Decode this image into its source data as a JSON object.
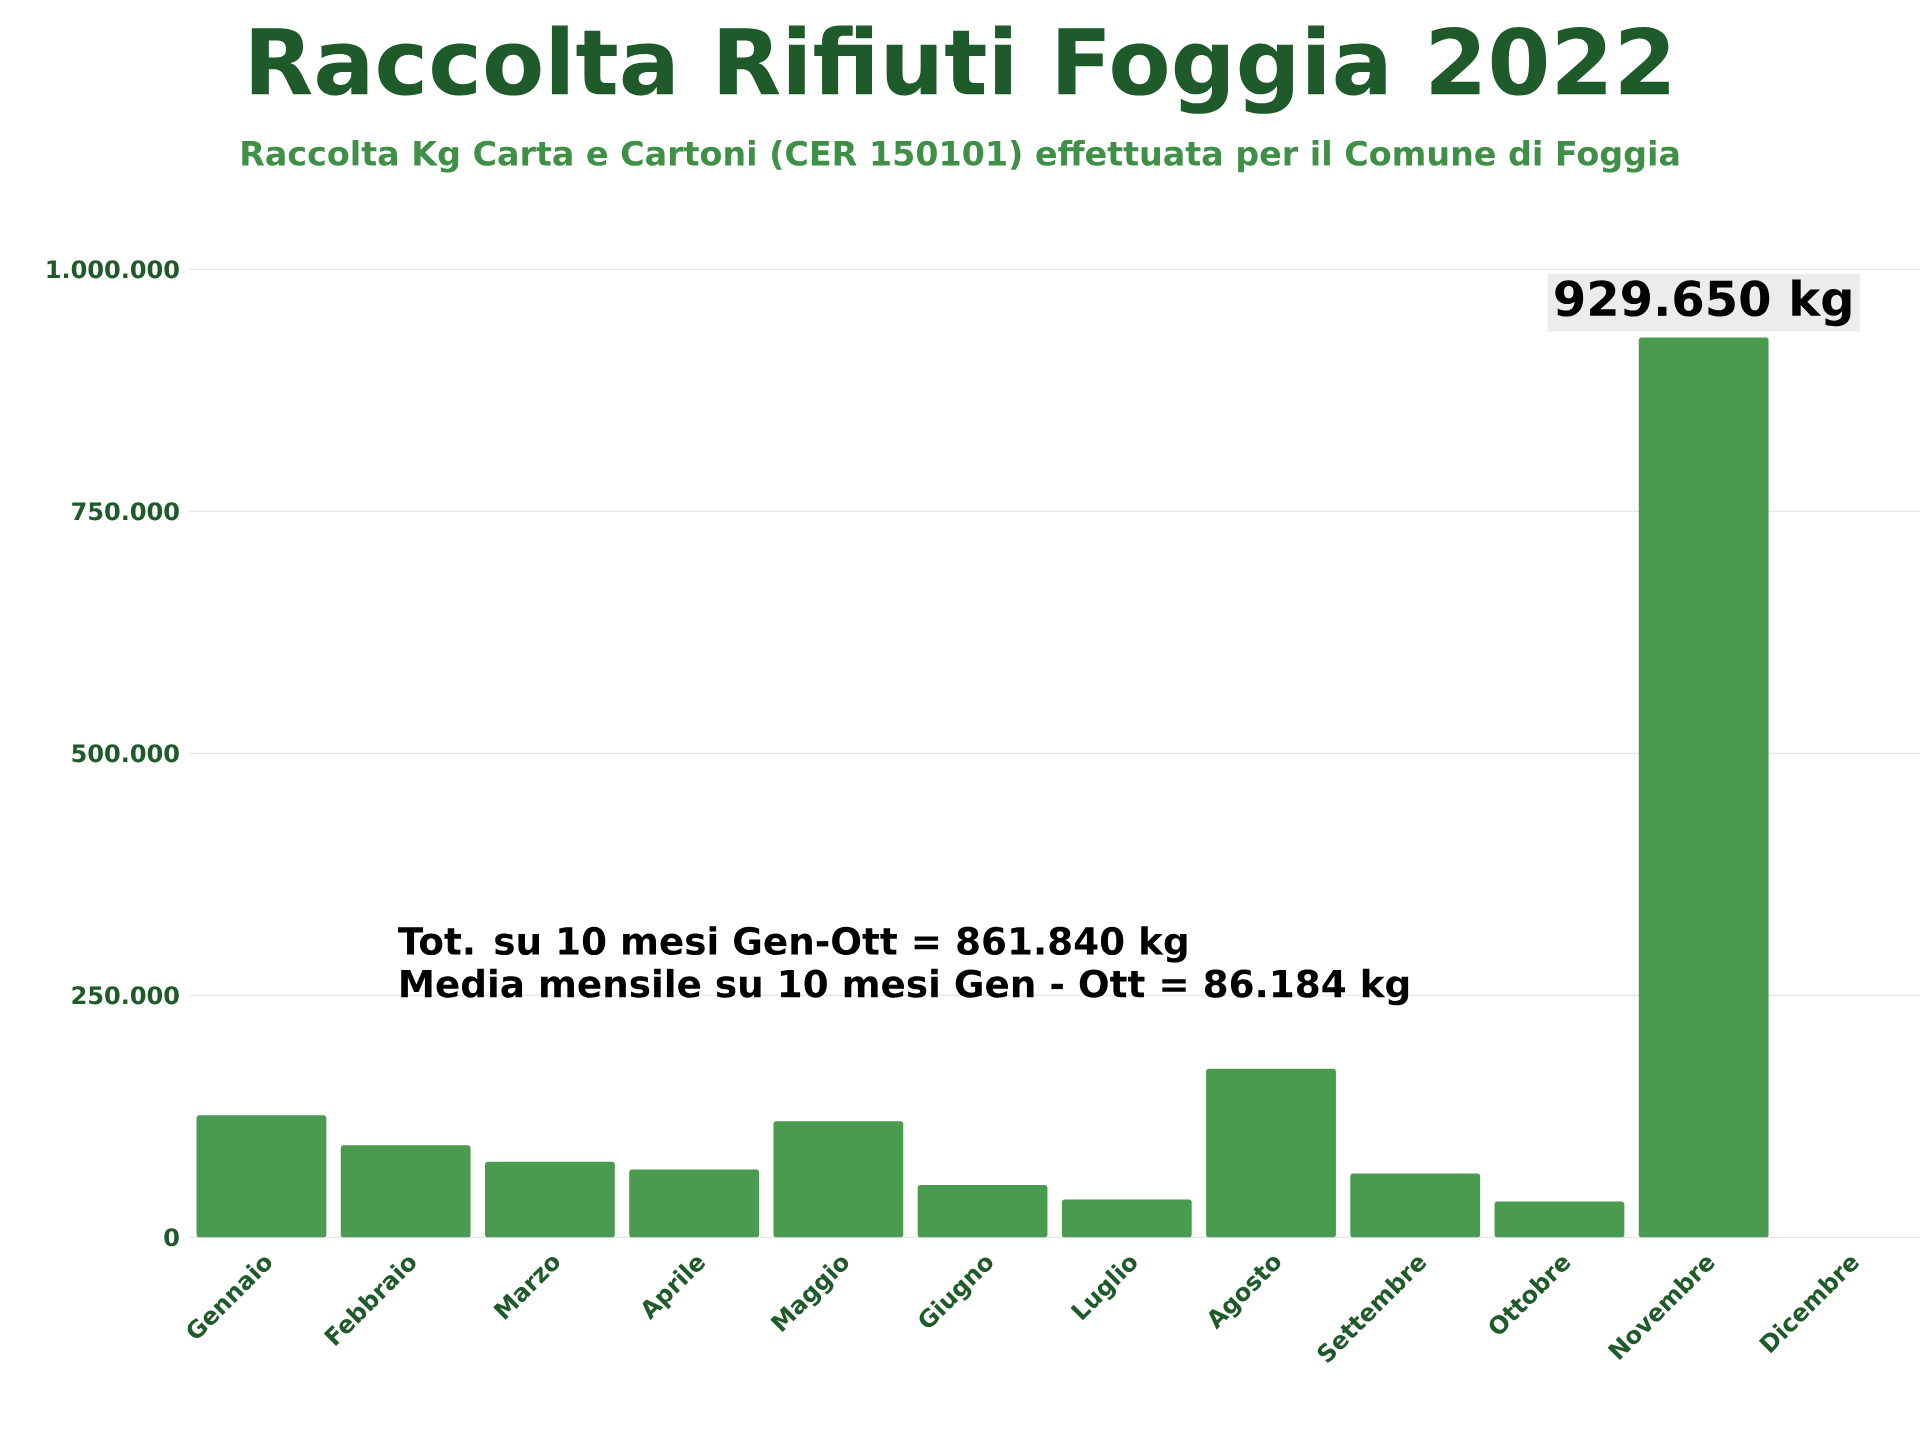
{
  "chart_data": {
    "type": "bar",
    "title": "Raccolta Rifiuti Foggia 2022",
    "subtitle": "Raccolta Kg Carta e Cartoni (CER 150101) effettuata per il Comune di Foggia",
    "categories": [
      "Gennaio",
      "Febbraio",
      "Marzo",
      "Aprile",
      "Maggio",
      "Giugno",
      "Luglio",
      "Agosto",
      "Settembre",
      "Ottobre",
      "Novembre",
      "Dicembre"
    ],
    "values": [
      126000,
      95000,
      78000,
      70000,
      120000,
      54000,
      39000,
      174000,
      66000,
      37000,
      929650,
      null
    ],
    "value_labels": [
      null,
      null,
      null,
      null,
      null,
      null,
      null,
      null,
      null,
      null,
      "929.650 kg",
      null
    ],
    "color": "#4a9a4f",
    "ylim": [
      0,
      1000000
    ],
    "yticks": [
      {
        "value": 0,
        "label": "0"
      },
      {
        "value": 250000,
        "label": "250.000"
      },
      {
        "value": 500000,
        "label": "500.000"
      },
      {
        "value": 750000,
        "label": "750.000"
      },
      {
        "value": 1000000,
        "label": "1.000.000"
      }
    ],
    "grid": "y",
    "annotations": [
      "Tot. su 10 mesi Gen-Ott = 861.840 kg",
      "Media mensile su 10 mesi Gen - Ott = 86.184 kg"
    ]
  }
}
